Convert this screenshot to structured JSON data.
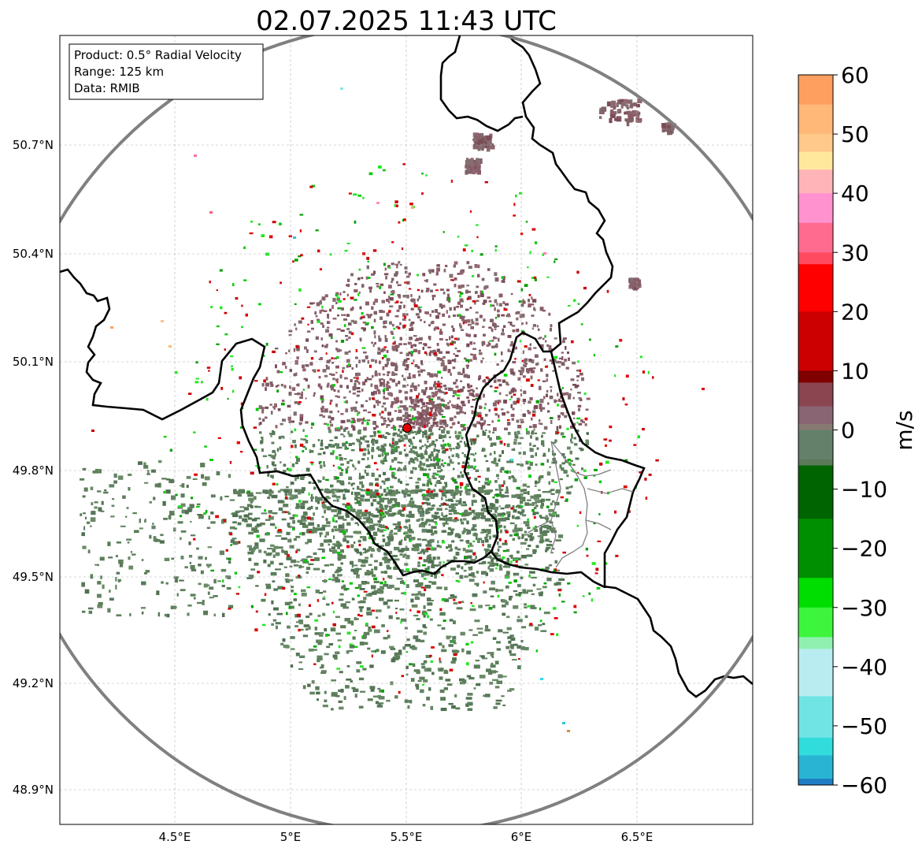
{
  "title": "02.07.2025 11:43 UTC",
  "info_box": {
    "product": "Product: 0.5° Radial Velocity",
    "range": "Range: 125 km",
    "data": "Data: RMIB"
  },
  "x_ticks": [
    "4.5°E",
    "5°E",
    "5.5°E",
    "6°E",
    "6.5°E"
  ],
  "y_ticks": [
    "50.7°N",
    "50.4°N",
    "50.1°N",
    "49.8°N",
    "49.5°N",
    "49.2°N",
    "48.9°N"
  ],
  "colorbar": {
    "unit": "m/s",
    "ticks": [
      "60",
      "50",
      "40",
      "30",
      "20",
      "10",
      "0",
      "−10",
      "−20",
      "−30",
      "−40",
      "−50",
      "−60"
    ],
    "stops": [
      {
        "v": 60,
        "color": "#ff9f5f"
      },
      {
        "v": 55,
        "color": "#ffb877"
      },
      {
        "v": 50,
        "color": "#ffc98a"
      },
      {
        "v": 47,
        "color": "#ffe89c"
      },
      {
        "v": 44,
        "color": "#ffb5b8"
      },
      {
        "v": 40,
        "color": "#ff92cf"
      },
      {
        "v": 35,
        "color": "#ff6b8e"
      },
      {
        "v": 30,
        "color": "#ff4a60"
      },
      {
        "v": 28,
        "color": "#ff0000"
      },
      {
        "v": 20,
        "color": "#cc0000"
      },
      {
        "v": 10,
        "color": "#800000"
      },
      {
        "v": 8,
        "color": "#8a4550"
      },
      {
        "v": 4,
        "color": "#896472"
      },
      {
        "v": 1,
        "color": "#877a74"
      },
      {
        "v": 0,
        "color": "#64806a"
      },
      {
        "v": -5,
        "color": "#5a7a5a"
      },
      {
        "v": -6,
        "color": "#006400"
      },
      {
        "v": -15,
        "color": "#008f00"
      },
      {
        "v": -25,
        "color": "#00dd00"
      },
      {
        "v": -30,
        "color": "#3cf53c"
      },
      {
        "v": -35,
        "color": "#90f0b0"
      },
      {
        "v": -37,
        "color": "#b8ecf0"
      },
      {
        "v": -45,
        "color": "#70e4e4"
      },
      {
        "v": -52,
        "color": "#30dcdc"
      },
      {
        "v": -55,
        "color": "#28b4d2"
      },
      {
        "v": -60,
        "color": "#1f7dc4"
      }
    ]
  },
  "radar_site": {
    "lon": 5.505,
    "lat": 49.914,
    "color": "#e00000"
  },
  "extent": {
    "lon": [
      4.0,
      7.0
    ],
    "lat": [
      48.8,
      51.0
    ]
  },
  "range_ring_km": 125,
  "colors": {
    "ring": "#808080",
    "border": "#000000",
    "sub_border": "#808080",
    "grid": "#b0b0b0",
    "approaching_green": "#5f7f5a",
    "receding_mauve": "#87606a"
  }
}
